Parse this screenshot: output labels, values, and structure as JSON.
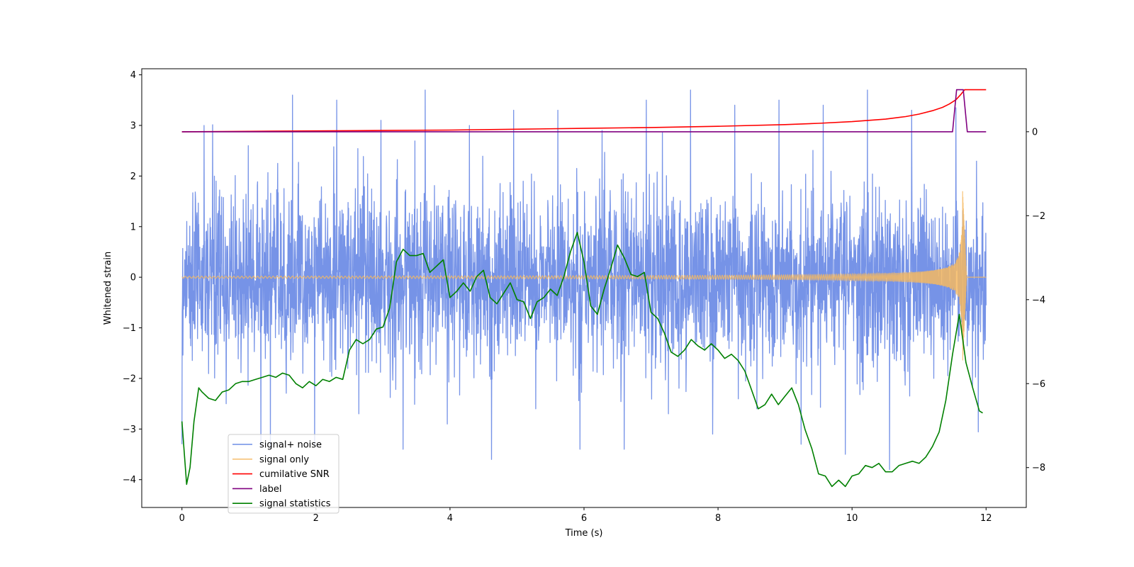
{
  "chart_data": {
    "type": "line",
    "title": "",
    "xlabel": "Time (s)",
    "ylabel": "Whitened strain",
    "ylabel_right": "",
    "xlim": [
      -0.6,
      12.6
    ],
    "ylim": [
      -4.55,
      4.12
    ],
    "ylim_right": [
      -8.95,
      1.5
    ],
    "x_ticks": [
      0,
      2,
      4,
      6,
      8,
      10,
      12
    ],
    "y_ticks": [
      -4,
      -3,
      -2,
      -1,
      0,
      1,
      2,
      3,
      4
    ],
    "y_ticks_right": [
      -8,
      -6,
      -4,
      -2,
      0
    ],
    "grid": false,
    "legend_position": "lower-left",
    "colors": {
      "noise": "#6f8de6",
      "signal": "#f6b960",
      "snr": "#ff0000",
      "label": "#800080",
      "stats": "#008000"
    },
    "series": [
      {
        "name": "signal+ noise",
        "axis": "left",
        "style": "noise",
        "x_range": [
          0,
          12
        ],
        "amplitude_envelope_max": 3.7,
        "amplitude_envelope_min": -3.8,
        "description_values": [
          -3.3,
          3.0,
          -2.5,
          2.6,
          -3.4,
          3.6,
          -3.3,
          3.5,
          -2.7,
          3.1,
          -3.4,
          3.7,
          -2.9,
          3.0,
          -3.6,
          3.3,
          -2.6,
          3.3,
          -3.4,
          2.9,
          -3.4,
          3.5,
          -2.7,
          3.7,
          -3.1,
          3.4,
          -2.6,
          3.5,
          -3.3,
          3.4,
          -3.5,
          3.7,
          -3.8,
          3.3,
          -2.0,
          3.35
        ]
      },
      {
        "name": "signal only",
        "axis": "left",
        "style": "signal",
        "x_range": [
          0,
          12
        ],
        "merger_time": 11.65,
        "peak_amplitude": 1.7
      },
      {
        "name": "cumilative SNR",
        "axis": "right",
        "x": [
          0,
          1,
          2,
          3,
          4,
          5,
          6,
          7,
          8,
          9,
          9.5,
          10,
          10.5,
          10.8,
          11,
          11.2,
          11.35,
          11.45,
          11.55,
          11.62,
          11.68,
          11.7,
          12
        ],
        "values": [
          0,
          0.01,
          0.02,
          0.03,
          0.04,
          0.06,
          0.08,
          0.1,
          0.13,
          0.17,
          0.2,
          0.24,
          0.3,
          0.36,
          0.42,
          0.5,
          0.58,
          0.66,
          0.76,
          0.88,
          1.0,
          1.0,
          1.0
        ]
      },
      {
        "name": "label",
        "axis": "right",
        "x": [
          0,
          11.5,
          11.56,
          11.66,
          11.72,
          12
        ],
        "values": [
          0,
          0,
          1.0,
          1.0,
          0,
          0
        ]
      },
      {
        "name": "signal statistics",
        "axis": "right",
        "x": [
          0,
          0.07,
          0.12,
          0.18,
          0.25,
          0.3,
          0.4,
          0.5,
          0.6,
          0.7,
          0.8,
          0.9,
          1.0,
          1.1,
          1.2,
          1.3,
          1.4,
          1.5,
          1.6,
          1.7,
          1.8,
          1.9,
          2.0,
          2.1,
          2.2,
          2.3,
          2.4,
          2.5,
          2.6,
          2.7,
          2.8,
          2.9,
          3.0,
          3.1,
          3.2,
          3.3,
          3.4,
          3.5,
          3.6,
          3.7,
          3.8,
          3.9,
          4.0,
          4.1,
          4.2,
          4.3,
          4.4,
          4.5,
          4.6,
          4.7,
          4.8,
          4.9,
          5.0,
          5.1,
          5.2,
          5.3,
          5.4,
          5.5,
          5.6,
          5.7,
          5.8,
          5.9,
          6.0,
          6.1,
          6.2,
          6.3,
          6.4,
          6.5,
          6.6,
          6.7,
          6.8,
          6.9,
          7.0,
          7.1,
          7.2,
          7.3,
          7.4,
          7.5,
          7.6,
          7.7,
          7.8,
          7.9,
          8.0,
          8.1,
          8.2,
          8.3,
          8.4,
          8.5,
          8.6,
          8.7,
          8.8,
          8.9,
          9.0,
          9.1,
          9.2,
          9.3,
          9.4,
          9.5,
          9.6,
          9.7,
          9.8,
          9.9,
          10.0,
          10.1,
          10.2,
          10.3,
          10.4,
          10.5,
          10.6,
          10.7,
          10.8,
          10.9,
          11.0,
          11.1,
          11.2,
          11.3,
          11.4,
          11.5,
          11.6,
          11.7,
          11.8,
          11.9,
          11.95
        ],
        "values": [
          -6.9,
          -8.4,
          -8.0,
          -6.9,
          -6.1,
          -6.2,
          -6.35,
          -6.4,
          -6.2,
          -6.15,
          -6.0,
          -5.95,
          -5.95,
          -5.9,
          -5.85,
          -5.8,
          -5.85,
          -5.75,
          -5.8,
          -6.0,
          -6.1,
          -5.95,
          -6.05,
          -5.9,
          -5.95,
          -5.85,
          -5.9,
          -5.2,
          -4.95,
          -5.05,
          -4.95,
          -4.7,
          -4.65,
          -4.2,
          -3.1,
          -2.8,
          -2.95,
          -2.95,
          -2.9,
          -3.35,
          -3.2,
          -3.05,
          -3.95,
          -3.8,
          -3.6,
          -3.8,
          -3.45,
          -3.3,
          -3.95,
          -4.1,
          -3.85,
          -3.6,
          -4.0,
          -4.05,
          -4.45,
          -4.05,
          -3.95,
          -3.75,
          -3.9,
          -3.45,
          -2.85,
          -2.4,
          -3.1,
          -4.15,
          -4.35,
          -3.75,
          -3.25,
          -2.7,
          -3.0,
          -3.4,
          -3.45,
          -3.35,
          -4.3,
          -4.45,
          -4.8,
          -5.25,
          -5.35,
          -5.2,
          -4.95,
          -5.1,
          -5.2,
          -5.05,
          -5.2,
          -5.4,
          -5.3,
          -5.45,
          -5.7,
          -6.15,
          -6.6,
          -6.5,
          -6.25,
          -6.5,
          -6.3,
          -6.1,
          -6.5,
          -7.1,
          -7.55,
          -8.15,
          -8.2,
          -8.45,
          -8.3,
          -8.45,
          -8.2,
          -8.15,
          -7.95,
          -8.0,
          -7.9,
          -8.1,
          -8.1,
          -7.95,
          -7.9,
          -7.85,
          -7.9,
          -7.75,
          -7.5,
          -7.15,
          -6.4,
          -5.3,
          -4.35,
          -5.5,
          -6.1,
          -6.65,
          -6.7
        ]
      }
    ],
    "legend": [
      {
        "label": "signal+ noise",
        "color_key": "noise"
      },
      {
        "label": "signal only",
        "color_key": "signal"
      },
      {
        "label": "cumilative SNR",
        "color_key": "snr"
      },
      {
        "label": "label",
        "color_key": "label"
      },
      {
        "label": "signal statistics",
        "color_key": "stats"
      }
    ]
  }
}
